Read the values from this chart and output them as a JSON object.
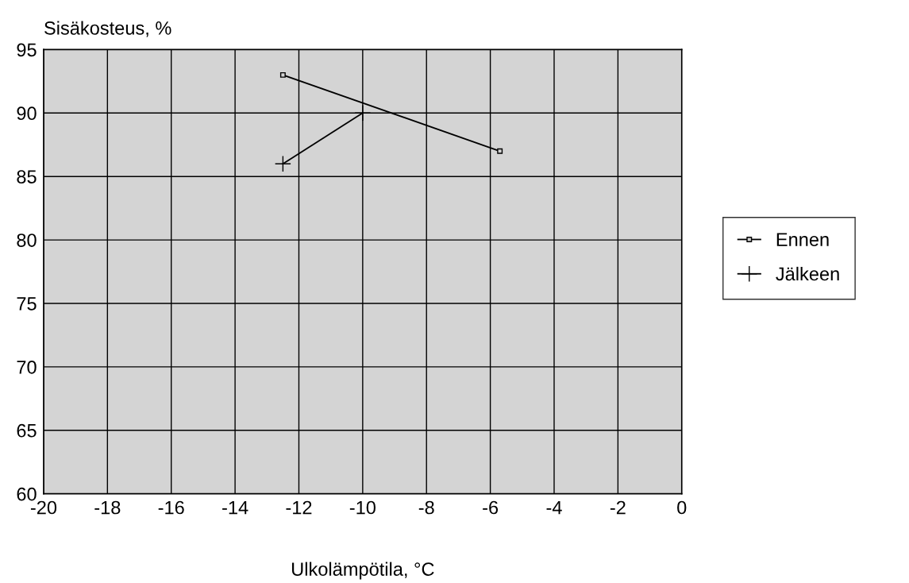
{
  "chart_data": {
    "type": "line",
    "ylabel": "Sisäkosteus, %",
    "xlabel": "Ulkolämpötila, °C",
    "series": [
      {
        "name": "Ennen",
        "color": "#000000",
        "x": [
          -12.5,
          -5.7
        ],
        "values": [
          93,
          87
        ],
        "marker": "square"
      },
      {
        "name": "Jälkeen",
        "color": "#000000",
        "x": [
          -12.5,
          -10
        ],
        "values": [
          86,
          90
        ],
        "marker": "cross"
      }
    ],
    "xlim": [
      -20,
      0
    ],
    "xticks": [
      -20,
      -18,
      -16,
      -14,
      -12,
      -10,
      -8,
      -6,
      -4,
      -2,
      0
    ],
    "ylim": [
      60,
      95
    ],
    "yticks": [
      60,
      65,
      70,
      75,
      80,
      85,
      90,
      95
    ],
    "grid": true,
    "legend": "right"
  }
}
